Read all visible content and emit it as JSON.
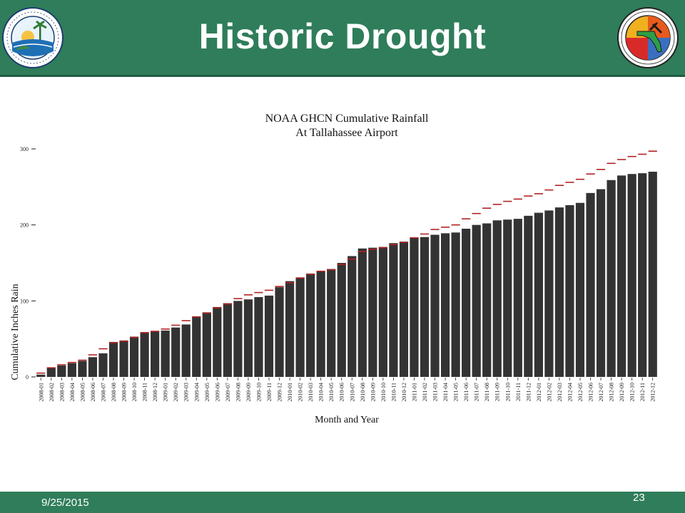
{
  "slide": {
    "title": "Historic Drought",
    "date": "9/25/2015",
    "page_number": "23",
    "header_color": "#2f7d5a"
  },
  "logos": {
    "left": {
      "icon": "florida-dep-seal-icon",
      "ring_text": "Florida Department of Environmental Protection"
    },
    "right": {
      "icon": "florida-geological-survey-seal-icon",
      "ring_text": "FLORIDA GEOLOGICAL SURVEY",
      "est": "EST. 1907"
    }
  },
  "chart_data": {
    "type": "bar",
    "title": "NOAA GHCN Cumulative Rainfall",
    "subtitle": "At Tallahassee Airport",
    "xlabel": "Month and Year",
    "ylabel": "Cumulative Inches Rain",
    "ylim": [
      0,
      310
    ],
    "yticks": [
      0,
      100,
      200,
      300
    ],
    "grid": false,
    "bar_color": "#333333",
    "marker_color": "#b22222",
    "categories": [
      "2008-01",
      "2008-02",
      "2008-03",
      "2008-04",
      "2008-05",
      "2008-06",
      "2008-07",
      "2008-08",
      "2008-09",
      "2008-10",
      "2008-11",
      "2008-12",
      "2009-01",
      "2009-02",
      "2009-03",
      "2009-04",
      "2009-05",
      "2009-06",
      "2009-07",
      "2009-08",
      "2009-09",
      "2009-10",
      "2009-11",
      "2009-12",
      "2010-01",
      "2010-02",
      "2010-03",
      "2010-04",
      "2010-05",
      "2010-06",
      "2010-07",
      "2010-08",
      "2010-09",
      "2010-10",
      "2010-11",
      "2010-12",
      "2011-01",
      "2011-02",
      "2011-03",
      "2011-04",
      "2011-05",
      "2011-06",
      "2011-07",
      "2011-08",
      "2011-09",
      "2011-10",
      "2011-11",
      "2011-12",
      "2012-01",
      "2012-02",
      "2012-03",
      "2012-04",
      "2012-05",
      "2012-06",
      "2012-07",
      "2012-08",
      "2012-09",
      "2012-10",
      "2012-11",
      "2012-12"
    ],
    "series": [
      {
        "type": "bar",
        "values": [
          3,
          12,
          15,
          18,
          21,
          26,
          31,
          46,
          48,
          53,
          59,
          60,
          61,
          65,
          69,
          79,
          85,
          92,
          97,
          100,
          102,
          105,
          107,
          118,
          126,
          131,
          136,
          139,
          142,
          150,
          159,
          169,
          170,
          171,
          176,
          178,
          183,
          184,
          187,
          189,
          190,
          195,
          200,
          202,
          206,
          207,
          208,
          212,
          216,
          219,
          223,
          226,
          229,
          242,
          247,
          259,
          265,
          267,
          268,
          270
        ]
      },
      {
        "type": "marker",
        "values": [
          5,
          12,
          16,
          19,
          22,
          29,
          37,
          45,
          47,
          52,
          58,
          60,
          63,
          68,
          74,
          79,
          84,
          91,
          96,
          103,
          108,
          111,
          114,
          119,
          124,
          130,
          135,
          139,
          141,
          148,
          155,
          165,
          168,
          170,
          174,
          177,
          183,
          188,
          194,
          197,
          200,
          208,
          215,
          222,
          227,
          231,
          234,
          238,
          241,
          246,
          252,
          256,
          260,
          267,
          273,
          281,
          286,
          290,
          293,
          297
        ]
      }
    ]
  }
}
